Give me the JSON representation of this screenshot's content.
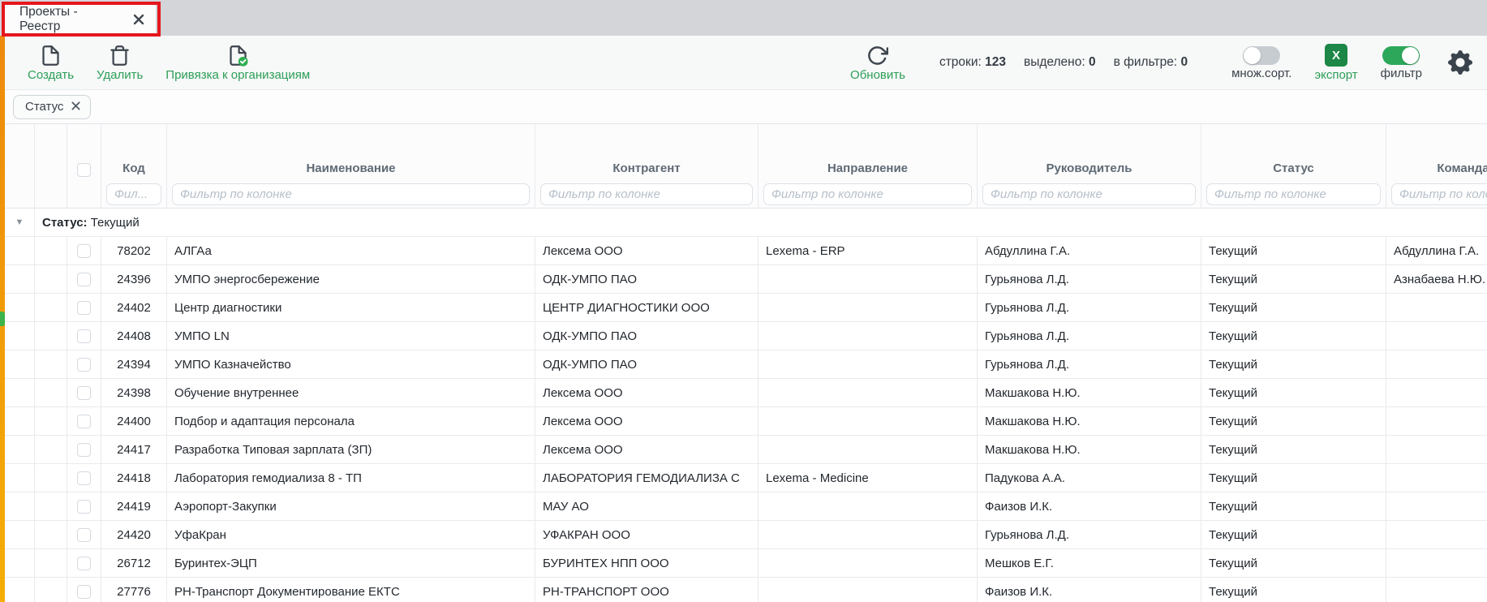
{
  "tab": {
    "title": "Проекты - Реестр"
  },
  "toolbar": {
    "create_label": "Создать",
    "delete_label": "Удалить",
    "link_orgs_label": "Привязка к организациям",
    "refresh_label": "Обновить",
    "counters": {
      "rows_label": "строки:",
      "rows_value": "123",
      "selected_label": "выделено:",
      "selected_value": "0",
      "in_filter_label": "в фильтре:",
      "in_filter_value": "0"
    },
    "multisort_label": "множ.сорт.",
    "export_label": "экспорт",
    "export_icon_letter": "X",
    "filter_label": "фильтр",
    "multisort_on": false,
    "filter_on": true
  },
  "group_panel": {
    "chip_label": "Статус"
  },
  "table": {
    "columns": [
      "Код",
      "Наименование",
      "Контрагент",
      "Направление",
      "Руководитель",
      "Статус",
      "Команда"
    ],
    "filter_placeholder_short": "Фил...",
    "filter_placeholder": "Фильтр по колонке",
    "group_row": {
      "label": "Статус:",
      "value": "Текущий",
      "collapse_icon": "▼"
    },
    "rows": [
      {
        "code": "78202",
        "name": "АЛГАа",
        "counterparty": "Лексема ООО",
        "direction": "Lexema - ERP",
        "manager": "Абдуллина Г.А.",
        "status": "Текущий",
        "team": "Абдуллина Г.А."
      },
      {
        "code": "24396",
        "name": "УМПО энергосбережение",
        "counterparty": "ОДК-УМПО ПАО",
        "direction": "",
        "manager": "Гурьянова Л.Д.",
        "status": "Текущий",
        "team": "Азнабаева Н.Ю."
      },
      {
        "code": "24402",
        "name": "Центр диагностики",
        "counterparty": "ЦЕНТР ДИАГНОСТИКИ ООО",
        "direction": "",
        "manager": "Гурьянова Л.Д.",
        "status": "Текущий",
        "team": ""
      },
      {
        "code": "24408",
        "name": "УМПО LN",
        "counterparty": "ОДК-УМПО ПАО",
        "direction": "",
        "manager": "Гурьянова Л.Д.",
        "status": "Текущий",
        "team": ""
      },
      {
        "code": "24394",
        "name": "УМПО Казначейство",
        "counterparty": "ОДК-УМПО ПАО",
        "direction": "",
        "manager": "Гурьянова Л.Д.",
        "status": "Текущий",
        "team": ""
      },
      {
        "code": "24398",
        "name": "Обучение внутреннее",
        "counterparty": "Лексема ООО",
        "direction": "",
        "manager": "Макшакова Н.Ю.",
        "status": "Текущий",
        "team": ""
      },
      {
        "code": "24400",
        "name": "Подбор и адаптация персонала",
        "counterparty": "Лексема ООО",
        "direction": "",
        "manager": "Макшакова Н.Ю.",
        "status": "Текущий",
        "team": ""
      },
      {
        "code": "24417",
        "name": "Разработка Типовая зарплата (ЗП)",
        "counterparty": "Лексема ООО",
        "direction": "",
        "manager": "Макшакова Н.Ю.",
        "status": "Текущий",
        "team": ""
      },
      {
        "code": "24418",
        "name": "Лаборатория гемодиализа 8 - ТП",
        "counterparty": "ЛАБОРАТОРИЯ ГЕМОДИАЛИЗА С",
        "direction": "Lexema - Medicine",
        "manager": "Падукова А.А.",
        "status": "Текущий",
        "team": ""
      },
      {
        "code": "24419",
        "name": "Аэропорт-Закупки",
        "counterparty": "МАУ АО",
        "direction": "",
        "manager": "Фаизов И.К.",
        "status": "Текущий",
        "team": ""
      },
      {
        "code": "24420",
        "name": "УфаКран",
        "counterparty": "УФАКРАН ООО",
        "direction": "",
        "manager": "Гурьянова Л.Д.",
        "status": "Текущий",
        "team": ""
      },
      {
        "code": "26712",
        "name": "Буринтех-ЭЦП",
        "counterparty": "БУРИНТЕХ НПП ООО",
        "direction": "",
        "manager": "Мешков Е.Г.",
        "status": "Текущий",
        "team": ""
      },
      {
        "code": "27776",
        "name": "РН-Транспорт Документирование ЕКТС",
        "counterparty": "РН-ТРАНСПОРТ ООО",
        "direction": "",
        "manager": "Фаизов И.К.",
        "status": "Текущий",
        "team": ""
      }
    ]
  },
  "colors": {
    "action_green": "#2b9e57",
    "excel_green": "#1c8746",
    "toggle_on_green": "#2da85b",
    "annotation_red": "#e6161d",
    "accent_bar_orange": "#f09a0a",
    "icon_slate": "#3d454e"
  },
  "icons": {
    "new_document": "doc outline",
    "trash": "trash outline",
    "document_check": "doc with green check",
    "refresh": "circular arrow",
    "excel": "green square X",
    "gear": "cogwheel",
    "close": "✕",
    "collapse_triangle": "▼"
  }
}
